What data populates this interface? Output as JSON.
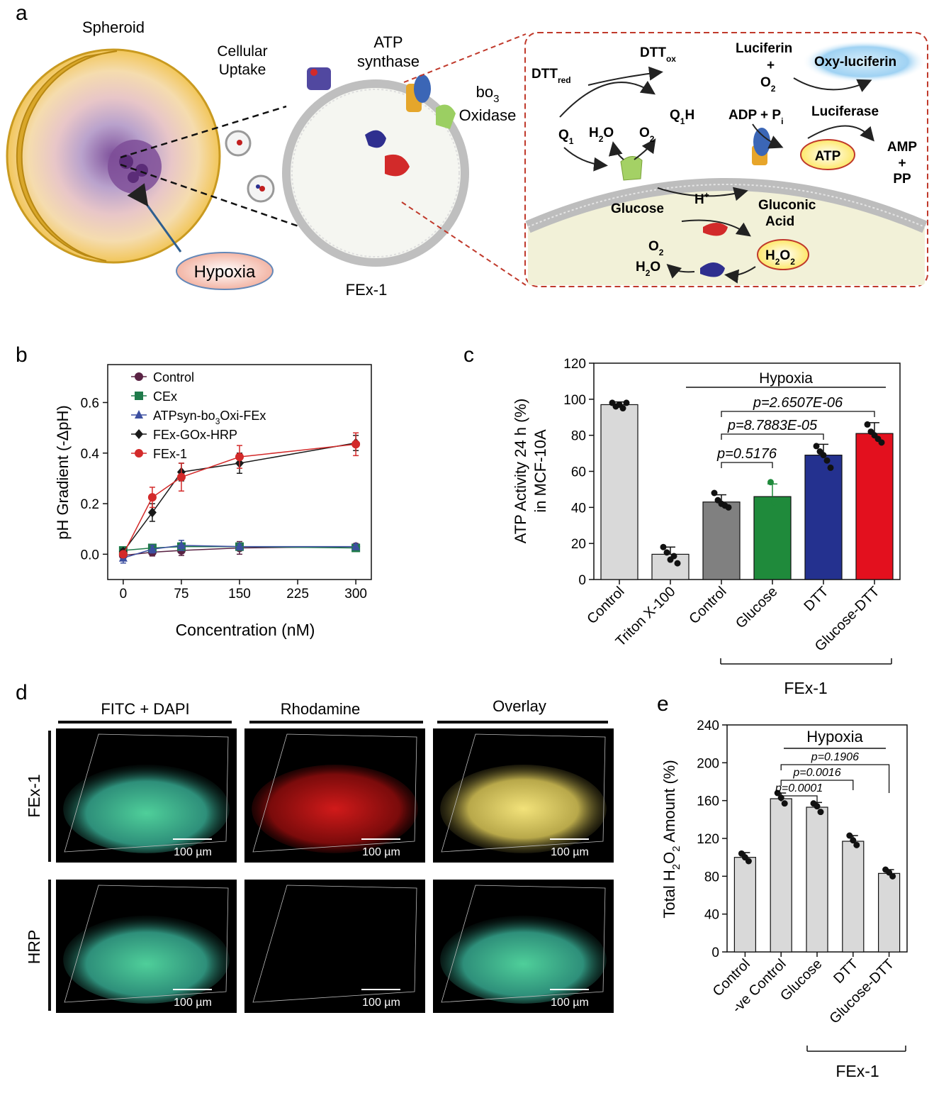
{
  "panel_labels": {
    "a": "a",
    "b": "b",
    "c": "c",
    "d": "d",
    "e": "e"
  },
  "panel_a": {
    "spheroid": "Spheroid",
    "cellular_uptake_1": "Cellular",
    "cellular_uptake_2": "Uptake",
    "hypoxia": "Hypoxia",
    "atp_synthase_1": "ATP",
    "atp_synthase_2": "synthase",
    "bo3_1": "bo",
    "bo3_sub": "3",
    "bo3_2": "Oxidase",
    "fex1": "FEx-1",
    "dtt_red": "DTT",
    "dtt_red_sub": "red",
    "dtt_ox": "DTT",
    "dtt_ox_sub": "ox",
    "q1": "Q",
    "q1_sub": "1",
    "q1h_a": "Q",
    "q1h_sub": "1",
    "q1h_b": "H",
    "h2o_a": "H",
    "h2o_sub": "2",
    "h2o_b": "O",
    "o2_a": "O",
    "o2_sub": "2",
    "luciferin": "Luciferin",
    "plus": "+",
    "o2b_a": "O",
    "o2b_sub": "2",
    "oxy_luciferin": "Oxy-luciferin",
    "adp_pi": "ADP + P",
    "adp_sub": "i",
    "luciferase": "Luciferase",
    "atp": "ATP",
    "amp": "AMP",
    "plus2": "+",
    "pp": "PP",
    "glucose": "Glucose",
    "h_plus": "H",
    "h_plus_sup": "+",
    "gluconic": "Gluconic",
    "acid": "Acid",
    "o2c_a": "O",
    "o2c_sub": "2",
    "h2oc_a": "H",
    "h2oc_sub": "2",
    "h2oc_b": "O",
    "h2o2_a": "H",
    "h2o2_sub1": "2",
    "h2o2_b": "O",
    "h2o2_sub2": "2"
  },
  "chart_data": [
    {
      "panel": "b",
      "type": "line",
      "xlabel": "Concentration (nM)",
      "ylabel": "pH Gradient (-ΔpH)",
      "xlim": [
        -20,
        320
      ],
      "ylim": [
        -0.1,
        0.75
      ],
      "xticks": [
        0,
        75,
        150,
        225,
        300
      ],
      "yticks": [
        0.0,
        0.2,
        0.4,
        0.6
      ],
      "ytick_labels": [
        "0.0",
        "0.2",
        "0.4",
        "0.6"
      ],
      "legend_position": "top-left",
      "series": [
        {
          "name": "Control",
          "marker": "circle",
          "color": "#5a2344",
          "x": [
            0,
            37.5,
            75,
            150,
            300
          ],
          "y": [
            -0.005,
            0.008,
            0.015,
            0.025,
            0.03
          ],
          "err": [
            0.02,
            0.015,
            0.02,
            0.025,
            0.012
          ]
        },
        {
          "name": "CEx",
          "marker": "square",
          "color": "#1f7a4a",
          "x": [
            0,
            37.5,
            75,
            150,
            300
          ],
          "y": [
            0.015,
            0.025,
            0.03,
            0.03,
            0.025
          ],
          "err": [
            0.01,
            0.01,
            0.015,
            0.01,
            0.01
          ]
        },
        {
          "name": "ATPsyn-bo3Oxi-FEx",
          "name_a": "ATPsyn-bo",
          "name_sub": "3",
          "name_b": "Oxi-FEx",
          "marker": "triangle",
          "color": "#3c4fa0",
          "x": [
            0,
            37.5,
            75,
            150,
            300
          ],
          "y": [
            -0.015,
            0.02,
            0.035,
            0.03,
            0.03
          ],
          "err": [
            0.02,
            0.015,
            0.02,
            0.01,
            0.01
          ]
        },
        {
          "name": "FEx-GOx-HRP",
          "marker": "diamond",
          "color": "#1a1a1a",
          "x": [
            0,
            37.5,
            75,
            150,
            300
          ],
          "y": [
            0.01,
            0.165,
            0.325,
            0.36,
            0.44
          ],
          "err": [
            0.01,
            0.035,
            0.035,
            0.04,
            0.03
          ]
        },
        {
          "name": "FEx-1",
          "marker": "circle",
          "color": "#d32a2a",
          "x": [
            0,
            37.5,
            75,
            150,
            300
          ],
          "y": [
            0.0,
            0.225,
            0.305,
            0.385,
            0.435
          ],
          "err": [
            0.01,
            0.04,
            0.055,
            0.045,
            0.045
          ]
        }
      ]
    },
    {
      "panel": "c",
      "type": "bar",
      "ylabel_line1": "ATP Activity 24 h (%)",
      "ylabel_line2": "in MCF-10A",
      "ylim": [
        0,
        120
      ],
      "yticks": [
        0,
        20,
        40,
        60,
        80,
        100,
        120
      ],
      "categories": [
        "Control",
        "Triton X-100",
        "Control",
        "Glucose",
        "DTT",
        "Glucose-DTT"
      ],
      "values": [
        97,
        14,
        43,
        46,
        69,
        81
      ],
      "errors": [
        1.5,
        4,
        4,
        7,
        6,
        6
      ],
      "colors": [
        "#d9d9d9",
        "#d9d9d9",
        "#808080",
        "#1f8a3b",
        "#24318f",
        "#e3101e"
      ],
      "points": [
        [
          98,
          96,
          97,
          95,
          98
        ],
        [
          18,
          15,
          11,
          13,
          9
        ],
        [
          48,
          44,
          42,
          41,
          40
        ],
        [
          54,
          43
        ],
        [
          74,
          71,
          69,
          66,
          62
        ],
        [
          86,
          82,
          80,
          78,
          76
        ]
      ],
      "hypoxia_label": "Hypoxia",
      "pvalues": [
        "p=2.6507E-06",
        "p=8.7883E-05",
        "p=0.5176"
      ],
      "group_label": "FEx-1"
    },
    {
      "panel": "e",
      "type": "bar",
      "ylabel": "Total H2O2 Amount (%)",
      "ylabel_a": "Total H",
      "ylabel_sub1": "2",
      "ylabel_b": "O",
      "ylabel_sub2": "2",
      "ylabel_c": " Amount (%)",
      "ylim": [
        0,
        240
      ],
      "yticks": [
        0,
        40,
        80,
        120,
        160,
        200,
        240
      ],
      "categories": [
        "Control",
        "-ve Control",
        "Glucose",
        "DTT",
        "Glucose-DTT"
      ],
      "values": [
        100,
        162,
        153,
        117,
        83
      ],
      "errors": [
        5,
        6,
        5,
        6,
        4
      ],
      "colors": [
        "#d9d9d9",
        "#d9d9d9",
        "#d9d9d9",
        "#d9d9d9",
        "#d9d9d9"
      ],
      "points": [
        [
          104,
          100,
          96
        ],
        [
          168,
          163,
          157
        ],
        [
          157,
          154,
          148
        ],
        [
          123,
          118,
          113
        ],
        [
          87,
          84,
          80
        ]
      ],
      "hypoxia_label": "Hypoxia",
      "pvalues": [
        "p=0.1906",
        "p=0.0016",
        "p=0.0001"
      ],
      "group_label": "FEx-1"
    }
  ],
  "panel_d": {
    "col_headers": [
      "FITC + DAPI",
      "Rhodamine",
      "Overlay"
    ],
    "row_labels": [
      "FEx-1",
      "HRP"
    ],
    "scale": "100 µm"
  }
}
